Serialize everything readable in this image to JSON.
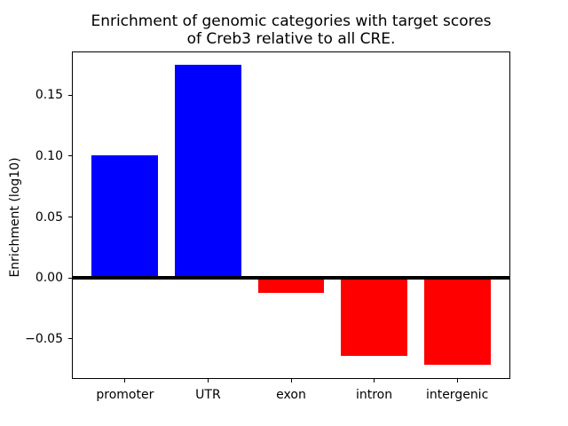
{
  "chart_data": {
    "type": "bar",
    "title": "Enrichment of genomic categories with target scores\nof Creb3 relative to all CRE.",
    "ylabel": "Enrichment (log10)",
    "xlabel": "",
    "categories": [
      "promoter",
      "UTR",
      "exon",
      "intron",
      "intergenic"
    ],
    "values": [
      0.101,
      0.175,
      -0.012,
      -0.064,
      -0.071
    ],
    "positive_color": "#0000ff",
    "negative_color": "#ff0000",
    "yticks": [
      0.15,
      0.1,
      0.05,
      0.0,
      -0.05
    ],
    "ytick_labels": [
      "0.15",
      "0.10",
      "0.05",
      "0.00",
      "−0.05"
    ],
    "ylim": [
      -0.083,
      0.186
    ],
    "xlim": [
      -0.64,
      4.64
    ],
    "bar_width": 0.8,
    "grid": false,
    "legend_position": "none",
    "zero_line": true,
    "axis_color": "#000000",
    "background_color": "#ffffff"
  }
}
